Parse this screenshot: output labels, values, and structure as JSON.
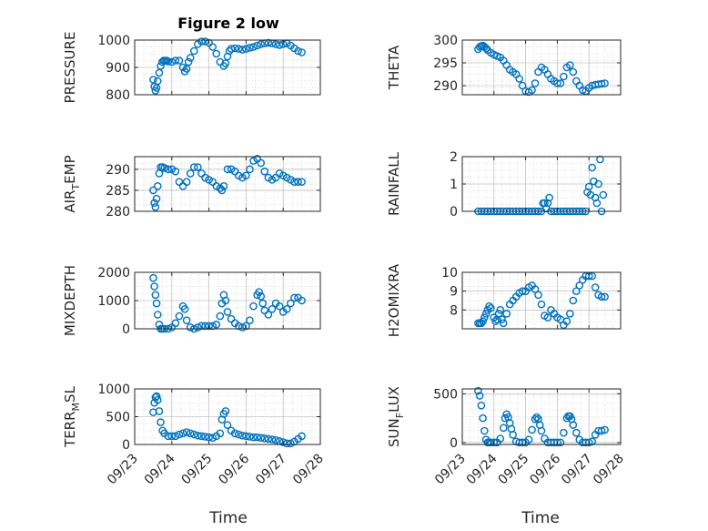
{
  "figure": {
    "title": "Figure 2 low"
  },
  "colors": {
    "marker": "#0072bd",
    "axis": "#262626",
    "grid": "#b0b0b0",
    "minor_grid": "#d8d8d8",
    "background": "#ffffff"
  },
  "chart_data": [
    {
      "type": "scatter",
      "ylabel": "PRESSURE",
      "xlim": [
        "09/23",
        "09/28"
      ],
      "ylim": [
        800,
        1000
      ],
      "yticks": [
        800,
        900,
        1000
      ],
      "xticks": [
        "09/23",
        "09/24",
        "09/25",
        "09/26",
        "09/27",
        "09/28"
      ],
      "grid": true,
      "marker": "circle",
      "series": [
        {
          "x": [
            0.5,
            0.53,
            0.56,
            0.59,
            0.62,
            0.66,
            0.7,
            0.74,
            0.78,
            0.82,
            0.86,
            0.9,
            1.0,
            1.1,
            1.2,
            1.3,
            1.35,
            1.4,
            1.45,
            1.5,
            1.6,
            1.7,
            1.8,
            1.9,
            2.0,
            2.1,
            2.2,
            2.3,
            2.4,
            2.45,
            2.5,
            2.55,
            2.6,
            2.7,
            2.8,
            2.9,
            3.0,
            3.1,
            3.2,
            3.3,
            3.4,
            3.5,
            3.6,
            3.7,
            3.8,
            3.9,
            4.0,
            4.1,
            4.2,
            4.3,
            4.4,
            4.5
          ],
          "y": [
            855,
            830,
            815,
            825,
            850,
            880,
            905,
            920,
            925,
            925,
            925,
            922,
            920,
            925,
            925,
            900,
            885,
            895,
            920,
            935,
            960,
            985,
            995,
            995,
            990,
            975,
            950,
            920,
            905,
            915,
            940,
            960,
            968,
            970,
            968,
            965,
            968,
            972,
            975,
            980,
            985,
            988,
            990,
            988,
            985,
            982,
            985,
            988,
            980,
            970,
            960,
            955
          ]
        }
      ]
    },
    {
      "type": "scatter",
      "ylabel": "THETA",
      "xlim": [
        "09/23",
        "09/28"
      ],
      "ylim": [
        288,
        300
      ],
      "yticks": [
        290,
        295,
        300
      ],
      "xticks": [
        "09/23",
        "09/24",
        "09/25",
        "09/26",
        "09/27",
        "09/28"
      ],
      "grid": true,
      "marker": "circle",
      "series": [
        {
          "x": [
            0.5,
            0.55,
            0.6,
            0.65,
            0.7,
            0.75,
            0.8,
            0.9,
            1.0,
            1.1,
            1.2,
            1.3,
            1.4,
            1.5,
            1.6,
            1.7,
            1.8,
            1.9,
            2.0,
            2.1,
            2.2,
            2.3,
            2.4,
            2.5,
            2.6,
            2.7,
            2.8,
            2.9,
            3.0,
            3.1,
            3.2,
            3.3,
            3.4,
            3.5,
            3.6,
            3.7,
            3.8,
            3.9,
            4.0,
            4.1,
            4.2,
            4.3,
            4.4,
            4.5
          ],
          "y": [
            298,
            298.5,
            298.7,
            298.8,
            298.5,
            298.2,
            297.8,
            297.2,
            296.8,
            296.5,
            296.2,
            295.5,
            294.5,
            293.5,
            293,
            292.5,
            291.5,
            290,
            288.8,
            288.6,
            289,
            290.5,
            293,
            294,
            293.5,
            292.5,
            291.5,
            291,
            290.5,
            290.5,
            292,
            294,
            294.5,
            293,
            291,
            290,
            289,
            288.8,
            289.5,
            290,
            290.2,
            290.3,
            290.4,
            290.5
          ]
        }
      ]
    },
    {
      "type": "scatter",
      "ylabel": "AIR_TEMP",
      "xlim": [
        "09/23",
        "09/28"
      ],
      "ylim": [
        280,
        293
      ],
      "yticks": [
        280,
        285,
        290
      ],
      "xticks": [
        "09/23",
        "09/24",
        "09/25",
        "09/26",
        "09/27",
        "09/28"
      ],
      "grid": true,
      "marker": "circle",
      "series": [
        {
          "x": [
            0.5,
            0.53,
            0.56,
            0.59,
            0.62,
            0.66,
            0.7,
            0.75,
            0.8,
            0.9,
            1.0,
            1.1,
            1.2,
            1.3,
            1.4,
            1.5,
            1.6,
            1.7,
            1.8,
            1.9,
            2.0,
            2.1,
            2.2,
            2.3,
            2.35,
            2.4,
            2.5,
            2.6,
            2.7,
            2.8,
            2.9,
            3.0,
            3.1,
            3.2,
            3.3,
            3.4,
            3.5,
            3.6,
            3.7,
            3.8,
            3.9,
            4.0,
            4.1,
            4.2,
            4.3,
            4.4,
            4.5
          ],
          "y": [
            285,
            282,
            281,
            283,
            286,
            289,
            290.5,
            290.5,
            290.3,
            290,
            290,
            289.5,
            287,
            286,
            287,
            289,
            290.5,
            290.5,
            289,
            288,
            287.5,
            287,
            286,
            285.5,
            285,
            286,
            290,
            290,
            289.5,
            288.5,
            288,
            288.5,
            290,
            292,
            292.5,
            291.5,
            289.5,
            288,
            287.5,
            288,
            289,
            288.5,
            288,
            287.5,
            287,
            287,
            287
          ]
        }
      ]
    },
    {
      "type": "scatter",
      "ylabel": "RAINFALL",
      "xlim": [
        "09/23",
        "09/28"
      ],
      "ylim": [
        0,
        2
      ],
      "yticks": [
        0,
        1,
        2
      ],
      "xticks": [
        "09/23",
        "09/24",
        "09/25",
        "09/26",
        "09/27",
        "09/28"
      ],
      "grid": true,
      "marker": "circle",
      "series": [
        {
          "x": [
            0.5,
            0.6,
            0.7,
            0.8,
            0.9,
            1.0,
            1.1,
            1.2,
            1.3,
            1.4,
            1.5,
            1.6,
            1.7,
            1.8,
            1.9,
            2.0,
            2.1,
            2.2,
            2.3,
            2.4,
            2.5,
            2.55,
            2.6,
            2.65,
            2.7,
            2.75,
            2.8,
            2.9,
            3.0,
            3.1,
            3.2,
            3.3,
            3.4,
            3.5,
            3.6,
            3.7,
            3.8,
            3.9,
            3.95,
            4.0,
            4.05,
            4.1,
            4.15,
            4.2,
            4.25,
            4.3,
            4.35,
            4.4,
            4.45
          ],
          "y": [
            0,
            0,
            0,
            0,
            0,
            0,
            0,
            0,
            0,
            0,
            0,
            0,
            0,
            0,
            0,
            0,
            0,
            0,
            0,
            0,
            0,
            0.3,
            0.3,
            0.1,
            0.3,
            0.5,
            0,
            0,
            0,
            0,
            0,
            0,
            0,
            0,
            0,
            0,
            0,
            0,
            0.7,
            0.9,
            0.6,
            1.6,
            1.1,
            0.5,
            0.3,
            1.0,
            1.9,
            0,
            0.6
          ]
        }
      ]
    },
    {
      "type": "scatter",
      "ylabel": "MIXDEPTH",
      "xlim": [
        "09/23",
        "09/28"
      ],
      "ylim": [
        0,
        2000
      ],
      "yticks": [
        0,
        1000,
        2000
      ],
      "xticks": [
        "09/23",
        "09/24",
        "09/25",
        "09/26",
        "09/27",
        "09/28"
      ],
      "grid": true,
      "marker": "circle",
      "series": [
        {
          "x": [
            0.5,
            0.53,
            0.56,
            0.59,
            0.62,
            0.66,
            0.7,
            0.75,
            0.8,
            0.9,
            1.0,
            1.1,
            1.2,
            1.3,
            1.35,
            1.4,
            1.5,
            1.6,
            1.7,
            1.8,
            1.9,
            2.0,
            2.1,
            2.2,
            2.3,
            2.35,
            2.4,
            2.45,
            2.5,
            2.6,
            2.7,
            2.8,
            2.9,
            3.0,
            3.1,
            3.2,
            3.3,
            3.35,
            3.4,
            3.45,
            3.5,
            3.6,
            3.7,
            3.8,
            3.9,
            4.0,
            4.1,
            4.2,
            4.3,
            4.4,
            4.5
          ],
          "y": [
            1800,
            1500,
            1200,
            900,
            500,
            150,
            0,
            0,
            0,
            0,
            50,
            200,
            450,
            800,
            700,
            300,
            50,
            0,
            50,
            100,
            100,
            100,
            100,
            150,
            450,
            900,
            1200,
            1000,
            600,
            350,
            200,
            100,
            50,
            100,
            300,
            800,
            1200,
            1300,
            1150,
            900,
            650,
            500,
            700,
            900,
            800,
            600,
            700,
            900,
            1100,
            1100,
            1000
          ]
        }
      ]
    },
    {
      "type": "scatter",
      "ylabel": "H2OMIXRA",
      "xlim": [
        "09/23",
        "09/28"
      ],
      "ylim": [
        7,
        10
      ],
      "yticks": [
        8,
        9,
        10
      ],
      "xticks": [
        "09/23",
        "09/24",
        "09/25",
        "09/26",
        "09/27",
        "09/28"
      ],
      "grid": true,
      "marker": "circle",
      "series": [
        {
          "x": [
            0.5,
            0.55,
            0.6,
            0.65,
            0.7,
            0.75,
            0.8,
            0.85,
            0.9,
            1.0,
            1.05,
            1.1,
            1.15,
            1.2,
            1.25,
            1.3,
            1.4,
            1.5,
            1.6,
            1.7,
            1.8,
            1.9,
            2.0,
            2.1,
            2.2,
            2.3,
            2.4,
            2.5,
            2.6,
            2.7,
            2.8,
            2.9,
            3.0,
            3.1,
            3.2,
            3.3,
            3.4,
            3.5,
            3.6,
            3.7,
            3.8,
            3.9,
            4.0,
            4.1,
            4.2,
            4.3,
            4.4,
            4.5
          ],
          "y": [
            7.3,
            7.3,
            7.3,
            7.4,
            7.6,
            7.8,
            8.0,
            8.2,
            8.1,
            7.6,
            7.4,
            7.5,
            7.8,
            8.0,
            7.5,
            7.3,
            7.8,
            8.3,
            8.5,
            8.7,
            8.9,
            9.0,
            9.0,
            9.2,
            9.3,
            9.1,
            8.8,
            8.3,
            7.7,
            7.6,
            8.0,
            7.8,
            7.6,
            7.5,
            7.2,
            7.4,
            7.8,
            8.5,
            9.0,
            9.3,
            9.6,
            9.8,
            9.8,
            9.8,
            9.2,
            8.8,
            8.7,
            8.7
          ]
        }
      ]
    },
    {
      "type": "scatter",
      "ylabel": "TERR_MSL",
      "xlim": [
        "09/23",
        "09/28"
      ],
      "ylim": [
        0,
        1000
      ],
      "yticks": [
        0,
        500,
        1000
      ],
      "xticks": [
        "09/23",
        "09/24",
        "09/25",
        "09/26",
        "09/27",
        "09/28"
      ],
      "grid": true,
      "marker": "circle",
      "series": [
        {
          "x": [
            0.5,
            0.53,
            0.56,
            0.59,
            0.62,
            0.66,
            0.7,
            0.75,
            0.8,
            0.9,
            1.0,
            1.1,
            1.2,
            1.3,
            1.4,
            1.5,
            1.6,
            1.7,
            1.8,
            1.9,
            2.0,
            2.1,
            2.2,
            2.3,
            2.35,
            2.4,
            2.45,
            2.5,
            2.6,
            2.7,
            2.8,
            2.9,
            3.0,
            3.1,
            3.2,
            3.3,
            3.4,
            3.5,
            3.6,
            3.7,
            3.8,
            3.9,
            4.0,
            4.1,
            4.2,
            4.3,
            4.4,
            4.5
          ],
          "y": [
            580,
            750,
            850,
            870,
            800,
            600,
            400,
            250,
            200,
            150,
            150,
            150,
            180,
            200,
            220,
            200,
            180,
            160,
            150,
            140,
            130,
            120,
            150,
            200,
            450,
            550,
            600,
            350,
            250,
            200,
            180,
            160,
            150,
            140,
            130,
            130,
            120,
            110,
            100,
            90,
            80,
            60,
            40,
            20,
            20,
            50,
            100,
            150
          ]
        }
      ]
    },
    {
      "type": "scatter",
      "ylabel": "SUN_FLUX",
      "xlim": [
        "09/23",
        "09/28"
      ],
      "ylim": [
        -20,
        550
      ],
      "yticks": [
        0,
        500
      ],
      "xticks": [
        "09/23",
        "09/24",
        "09/25",
        "09/26",
        "09/27",
        "09/28"
      ],
      "grid": true,
      "marker": "circle",
      "series": [
        {
          "x": [
            0.5,
            0.55,
            0.6,
            0.65,
            0.7,
            0.75,
            0.8,
            0.85,
            0.9,
            1.0,
            1.1,
            1.2,
            1.3,
            1.35,
            1.4,
            1.45,
            1.5,
            1.55,
            1.6,
            1.7,
            1.8,
            1.9,
            2.0,
            2.1,
            2.2,
            2.3,
            2.35,
            2.4,
            2.45,
            2.5,
            2.6,
            2.7,
            2.8,
            2.9,
            3.0,
            3.1,
            3.2,
            3.3,
            3.35,
            3.4,
            3.45,
            3.5,
            3.6,
            3.7,
            3.8,
            3.9,
            4.0,
            4.1,
            4.2,
            4.3,
            4.4,
            4.5
          ],
          "y": [
            530,
            480,
            380,
            250,
            120,
            30,
            0,
            0,
            0,
            0,
            0,
            40,
            150,
            250,
            290,
            260,
            200,
            140,
            80,
            10,
            0,
            0,
            0,
            30,
            130,
            240,
            260,
            240,
            180,
            120,
            40,
            0,
            0,
            0,
            0,
            0,
            100,
            250,
            270,
            270,
            240,
            180,
            100,
            30,
            0,
            0,
            0,
            10,
            80,
            120,
            120,
            130
          ]
        }
      ]
    }
  ],
  "axes_labels": [
    {
      "ylabel_text": "PRESSURE"
    },
    {
      "ylabel_text": "THETA"
    },
    {
      "ylabel_main": "AIR",
      "ylabel_sub": "T",
      "ylabel_tail": "EMP"
    },
    {
      "ylabel_text": "RAINFALL"
    },
    {
      "ylabel_text": "MIXDEPTH"
    },
    {
      "ylabel_text": "H2OMIXRA"
    },
    {
      "ylabel_main": "TERR",
      "ylabel_sub": "M",
      "ylabel_tail": "SL"
    },
    {
      "ylabel_main": "SUN",
      "ylabel_sub": "F",
      "ylabel_tail": "LUX"
    }
  ],
  "xlabel": "Time"
}
